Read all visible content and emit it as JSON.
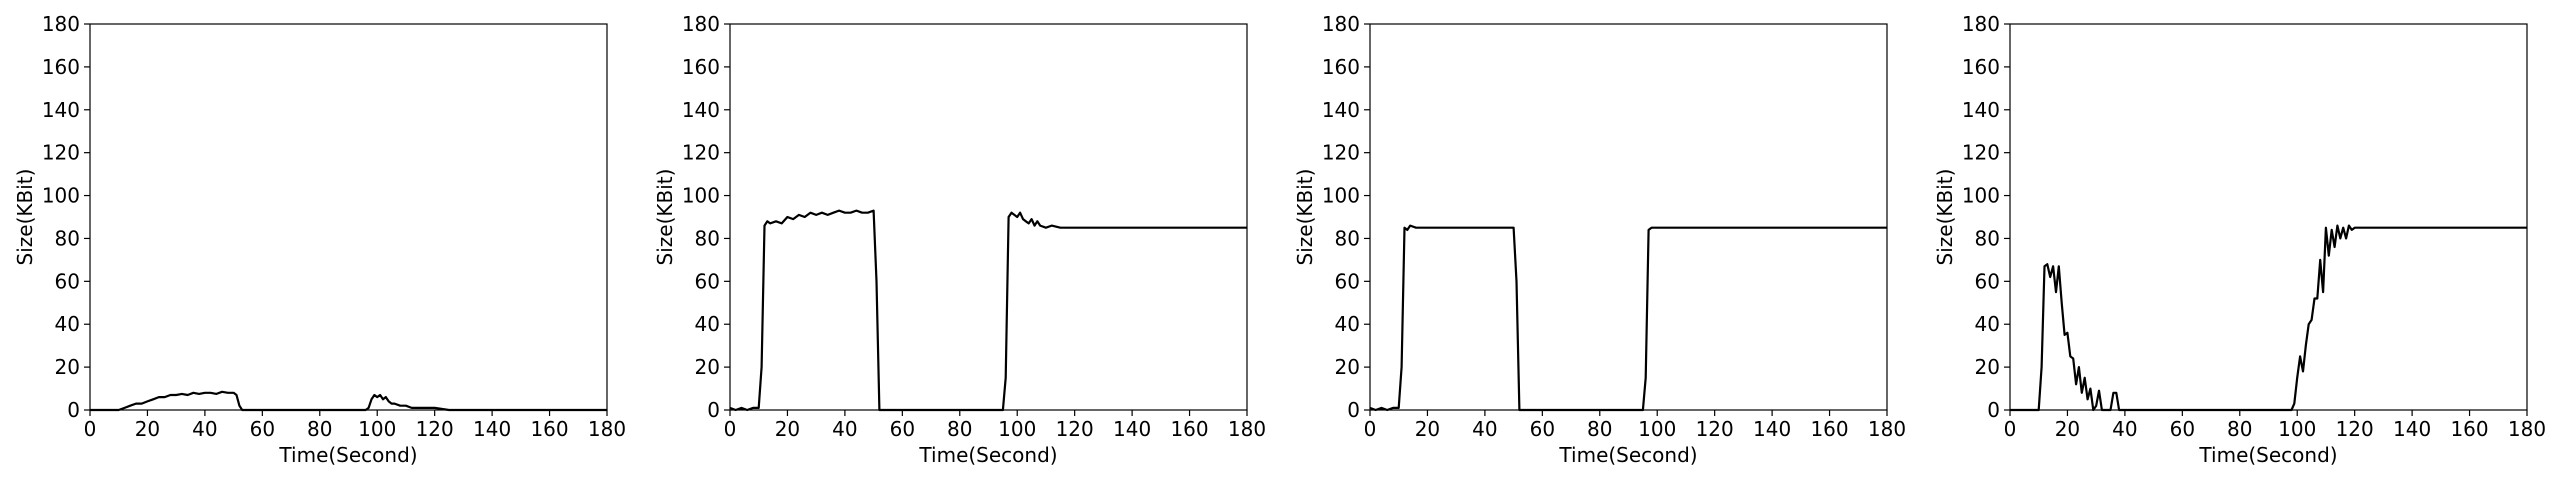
{
  "chart_data": [
    {
      "type": "line",
      "xlabel": "Time(Second)",
      "ylabel": "Size(KBit)",
      "xlim": [
        0,
        180
      ],
      "ylim": [
        0,
        180
      ],
      "xticks": [
        0,
        20,
        40,
        60,
        80,
        100,
        120,
        140,
        160,
        180
      ],
      "yticks": [
        0,
        20,
        40,
        60,
        80,
        100,
        120,
        140,
        160,
        180
      ],
      "grid": false,
      "line_color": "#000000",
      "series": [
        {
          "x": [
            0,
            5,
            10,
            12,
            14,
            16,
            18,
            20,
            22,
            24,
            26,
            28,
            30,
            32,
            34,
            36,
            38,
            40,
            42,
            44,
            46,
            48,
            50,
            51,
            52,
            53,
            55,
            60,
            70,
            80,
            90,
            95,
            96,
            97,
            98,
            99,
            100,
            101,
            102,
            103,
            104,
            105,
            106,
            108,
            110,
            112,
            115,
            120,
            125,
            130,
            140,
            150,
            160,
            170,
            180
          ],
          "y": [
            0,
            0,
            0,
            1,
            2,
            3,
            3,
            4,
            5,
            6,
            6,
            7,
            7,
            7.5,
            7,
            8,
            7.5,
            8,
            8,
            7.5,
            8.5,
            8,
            8,
            7,
            2,
            0,
            0,
            0,
            0,
            0,
            0,
            0,
            0,
            1,
            5,
            7,
            6,
            7,
            5,
            6,
            4,
            3,
            3,
            2,
            2,
            1,
            1,
            1,
            0,
            0,
            0,
            0,
            0,
            0,
            0
          ]
        }
      ]
    },
    {
      "type": "line",
      "xlabel": "Time(Second)",
      "ylabel": "Size(KBit)",
      "xlim": [
        0,
        180
      ],
      "ylim": [
        0,
        180
      ],
      "xticks": [
        0,
        20,
        40,
        60,
        80,
        100,
        120,
        140,
        160,
        180
      ],
      "yticks": [
        0,
        20,
        40,
        60,
        80,
        100,
        120,
        140,
        160,
        180
      ],
      "grid": false,
      "line_color": "#000000",
      "series": [
        {
          "x": [
            0,
            2,
            4,
            6,
            8,
            10,
            11,
            12,
            13,
            14,
            16,
            18,
            20,
            22,
            24,
            26,
            28,
            30,
            32,
            34,
            36,
            38,
            40,
            42,
            44,
            46,
            48,
            50,
            51,
            52,
            53,
            55,
            60,
            70,
            80,
            90,
            94,
            95,
            96,
            97,
            98,
            99,
            100,
            101,
            102,
            103,
            104,
            105,
            106,
            107,
            108,
            110,
            112,
            115,
            120,
            125,
            130,
            140,
            150,
            160,
            170,
            180
          ],
          "y": [
            1,
            0,
            1,
            0,
            1,
            1,
            20,
            86,
            88,
            87,
            88,
            87,
            90,
            89,
            91,
            90,
            92,
            91,
            92,
            91,
            92,
            93,
            92,
            92,
            93,
            92,
            92,
            93,
            60,
            0,
            0,
            0,
            0,
            0,
            0,
            0,
            0,
            0,
            15,
            90,
            92,
            91,
            90,
            92,
            89,
            88,
            87,
            89,
            86,
            88,
            86,
            85,
            86,
            85,
            85,
            85,
            85,
            85,
            85,
            85,
            85,
            85
          ]
        }
      ]
    },
    {
      "type": "line",
      "xlabel": "Time(Second)",
      "ylabel": "Size(KBit)",
      "xlim": [
        0,
        180
      ],
      "ylim": [
        0,
        180
      ],
      "xticks": [
        0,
        20,
        40,
        60,
        80,
        100,
        120,
        140,
        160,
        180
      ],
      "yticks": [
        0,
        20,
        40,
        60,
        80,
        100,
        120,
        140,
        160,
        180
      ],
      "grid": false,
      "line_color": "#000000",
      "series": [
        {
          "x": [
            0,
            2,
            4,
            6,
            8,
            10,
            11,
            12,
            13,
            14,
            16,
            20,
            25,
            30,
            35,
            40,
            45,
            50,
            51,
            52,
            53,
            55,
            60,
            70,
            80,
            90,
            94,
            95,
            96,
            97,
            98,
            100,
            105,
            110,
            120,
            130,
            140,
            150,
            160,
            170,
            180
          ],
          "y": [
            1,
            0,
            1,
            0,
            1,
            1,
            20,
            85,
            84,
            86,
            85,
            85,
            85,
            85,
            85,
            85,
            85,
            85,
            60,
            0,
            0,
            0,
            0,
            0,
            0,
            0,
            0,
            0,
            15,
            84,
            85,
            85,
            85,
            85,
            85,
            85,
            85,
            85,
            85,
            85,
            85
          ]
        }
      ]
    },
    {
      "type": "line",
      "xlabel": "Time(Second)",
      "ylabel": "Size(KBit)",
      "xlim": [
        0,
        180
      ],
      "ylim": [
        0,
        180
      ],
      "xticks": [
        0,
        20,
        40,
        60,
        80,
        100,
        120,
        140,
        160,
        180
      ],
      "yticks": [
        0,
        20,
        40,
        60,
        80,
        100,
        120,
        140,
        160,
        180
      ],
      "grid": false,
      "line_color": "#000000",
      "series": [
        {
          "x": [
            0,
            5,
            10,
            11,
            12,
            13,
            14,
            15,
            16,
            17,
            18,
            19,
            20,
            21,
            22,
            23,
            24,
            25,
            26,
            27,
            28,
            29,
            30,
            31,
            32,
            33,
            34,
            35,
            36,
            37,
            38,
            39,
            40,
            42,
            45,
            50,
            60,
            70,
            80,
            90,
            94,
            96,
            98,
            99,
            100,
            101,
            102,
            103,
            104,
            105,
            106,
            107,
            108,
            109,
            110,
            111,
            112,
            113,
            114,
            115,
            116,
            117,
            118,
            119,
            120,
            122,
            125,
            130,
            140,
            150,
            160,
            170,
            180
          ],
          "y": [
            0,
            0,
            0,
            20,
            67,
            68,
            62,
            67,
            55,
            67,
            50,
            35,
            36,
            25,
            24,
            12,
            20,
            8,
            15,
            5,
            10,
            0,
            2,
            9,
            0,
            0,
            0,
            0,
            8,
            8,
            0,
            0,
            0,
            0,
            0,
            0,
            0,
            0,
            0,
            0,
            0,
            0,
            0,
            3,
            15,
            25,
            18,
            30,
            40,
            42,
            52,
            52,
            70,
            55,
            85,
            72,
            84,
            76,
            86,
            80,
            85,
            80,
            86,
            84,
            85,
            85,
            85,
            85,
            85,
            85,
            85,
            85,
            85
          ]
        }
      ]
    }
  ]
}
